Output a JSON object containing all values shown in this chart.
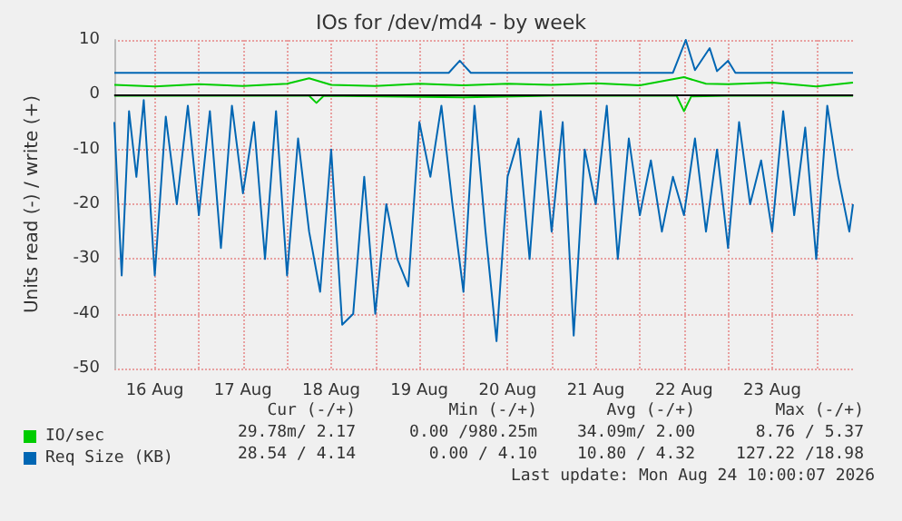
{
  "chart_data": {
    "type": "line",
    "title": "IOs for /dev/md4 - by week",
    "ylabel": "Units read (-) / write (+)",
    "xlim": [
      "2026-08-16T01:00",
      "2026-08-24T10:00"
    ],
    "xticks": [
      {
        "value": "2026-08-16T12:00",
        "label": "16 Aug"
      },
      {
        "value": "2026-08-17T00:00",
        "label": null
      },
      {
        "value": "2026-08-17T12:00",
        "label": "17 Aug"
      },
      {
        "value": "2026-08-18T00:00",
        "label": null
      },
      {
        "value": "2026-08-18T12:00",
        "label": "18 Aug"
      },
      {
        "value": "2026-08-19T00:00",
        "label": null
      },
      {
        "value": "2026-08-19T12:00",
        "label": "19 Aug"
      },
      {
        "value": "2026-08-20T00:00",
        "label": null
      },
      {
        "value": "2026-08-20T12:00",
        "label": "20 Aug"
      },
      {
        "value": "2026-08-21T00:00",
        "label": null
      },
      {
        "value": "2026-08-21T12:00",
        "label": "21 Aug"
      },
      {
        "value": "2026-08-22T00:00",
        "label": null
      },
      {
        "value": "2026-08-22T12:00",
        "label": "22 Aug"
      },
      {
        "value": "2026-08-23T00:00",
        "label": null
      },
      {
        "value": "2026-08-23T12:00",
        "label": "23 Aug"
      },
      {
        "value": "2026-08-24T00:00",
        "label": null
      }
    ],
    "ylim": [
      -50,
      10
    ],
    "yticks": [
      -50,
      -40,
      -30,
      -20,
      -10,
      0,
      10
    ],
    "grid": true,
    "legend": "bottom left",
    "marker": "none",
    "line_style": "solid",
    "ref_lines": [
      {
        "axis": "y",
        "value": 0,
        "color": "#000000"
      }
    ],
    "series": [
      {
        "name": "IO/sec",
        "color": "#00cc00",
        "x": [
          "2026-08-16T01:00",
          "2026-08-17T00:00",
          "2026-08-18T06:00",
          "2026-08-18T08:00",
          "2026-08-18T10:00",
          "2026-08-20T00:00",
          "2026-08-21T00:00",
          "2026-08-22T10:00",
          "2026-08-22T12:00",
          "2026-08-22T14:00",
          "2026-08-23T00:00",
          "2026-08-24T10:00"
        ],
        "values": [
          -0.2,
          -0.2,
          -0.2,
          -1.5,
          -0.2,
          -0.5,
          -0.2,
          -0.2,
          -3,
          -0.3,
          -0.2,
          -0.2
        ]
      },
      {
        "color": "#00cc00",
        "x": [
          "2026-08-16T01:00",
          "2026-08-16T12:00",
          "2026-08-17T00:00",
          "2026-08-17T12:00",
          "2026-08-18T00:00",
          "2026-08-18T06:00",
          "2026-08-18T12:00",
          "2026-08-19T00:00",
          "2026-08-19T12:00",
          "2026-08-20T00:00",
          "2026-08-20T12:00",
          "2026-08-21T00:00",
          "2026-08-21T12:00",
          "2026-08-22T00:00",
          "2026-08-22T12:00",
          "2026-08-22T18:00",
          "2026-08-23T00:00",
          "2026-08-23T12:00",
          "2026-08-24T00:00",
          "2026-08-24T10:00"
        ],
        "values": [
          1.8,
          1.5,
          1.9,
          1.6,
          2.0,
          3.0,
          1.8,
          1.6,
          2.0,
          1.7,
          2.0,
          1.8,
          2.1,
          1.7,
          3.2,
          2.0,
          1.9,
          2.2,
          1.5,
          2.2
        ]
      },
      {
        "name": "Req Size (KB)",
        "color": "#0066b3",
        "x": [
          "2026-08-16T01:00",
          "2026-08-16T03:00",
          "2026-08-16T05:00",
          "2026-08-16T07:00",
          "2026-08-16T09:00",
          "2026-08-16T12:00",
          "2026-08-16T15:00",
          "2026-08-16T18:00",
          "2026-08-16T21:00",
          "2026-08-17T00:00",
          "2026-08-17T03:00",
          "2026-08-17T06:00",
          "2026-08-17T09:00",
          "2026-08-17T12:00",
          "2026-08-17T15:00",
          "2026-08-17T18:00",
          "2026-08-17T21:00",
          "2026-08-18T00:00",
          "2026-08-18T03:00",
          "2026-08-18T06:00",
          "2026-08-18T09:00",
          "2026-08-18T12:00",
          "2026-08-18T15:00",
          "2026-08-18T18:00",
          "2026-08-18T21:00",
          "2026-08-19T00:00",
          "2026-08-19T03:00",
          "2026-08-19T06:00",
          "2026-08-19T09:00",
          "2026-08-19T12:00",
          "2026-08-19T15:00",
          "2026-08-19T18:00",
          "2026-08-19T21:00",
          "2026-08-20T00:00",
          "2026-08-20T03:00",
          "2026-08-20T06:00",
          "2026-08-20T09:00",
          "2026-08-20T12:00",
          "2026-08-20T15:00",
          "2026-08-20T18:00",
          "2026-08-20T21:00",
          "2026-08-21T00:00",
          "2026-08-21T03:00",
          "2026-08-21T06:00",
          "2026-08-21T09:00",
          "2026-08-21T12:00",
          "2026-08-21T15:00",
          "2026-08-21T18:00",
          "2026-08-21T21:00",
          "2026-08-22T00:00",
          "2026-08-22T03:00",
          "2026-08-22T06:00",
          "2026-08-22T09:00",
          "2026-08-22T12:00",
          "2026-08-22T15:00",
          "2026-08-22T18:00",
          "2026-08-22T21:00",
          "2026-08-23T00:00",
          "2026-08-23T03:00",
          "2026-08-23T06:00",
          "2026-08-23T09:00",
          "2026-08-23T12:00",
          "2026-08-23T15:00",
          "2026-08-23T18:00",
          "2026-08-23T21:00",
          "2026-08-24T00:00",
          "2026-08-24T03:00",
          "2026-08-24T06:00",
          "2026-08-24T09:00",
          "2026-08-24T10:00"
        ],
        "values": [
          -5,
          -33,
          -3,
          -15,
          -1,
          -33,
          -4,
          -20,
          -2,
          -22,
          -3,
          -28,
          -2,
          -18,
          -5,
          -30,
          -3,
          -33,
          -8,
          -25,
          -36,
          -10,
          -42,
          -40,
          -15,
          -40,
          -20,
          -30,
          -35,
          -5,
          -15,
          -2,
          -20,
          -36,
          -2,
          -25,
          -45,
          -15,
          -8,
          -30,
          -3,
          -25,
          -5,
          -44,
          -10,
          -20,
          -2,
          -30,
          -8,
          -22,
          -12,
          -25,
          -15,
          -22,
          -8,
          -25,
          -10,
          -28,
          -5,
          -20,
          -12,
          -25,
          -3,
          -22,
          -6,
          -30,
          -2,
          -15,
          -25,
          -20
        ]
      },
      {
        "color": "#0066b3",
        "x": [
          "2026-08-16T01:00",
          "2026-08-17T12:00",
          "2026-08-19T20:00",
          "2026-08-19T23:00",
          "2026-08-20T02:00",
          "2026-08-22T09:00",
          "2026-08-22T12:30",
          "2026-08-22T15:00",
          "2026-08-22T19:00",
          "2026-08-22T21:00",
          "2026-08-23T00:00",
          "2026-08-23T02:00",
          "2026-08-24T10:00"
        ],
        "values": [
          4,
          4,
          4,
          6.2,
          4,
          4,
          10,
          4.5,
          8.5,
          4.3,
          6.2,
          4,
          4
        ]
      }
    ],
    "annotations": [
      "Cur (-/+)",
      "Min (-/+)",
      "Avg (-/+)",
      "Max (-/+)",
      "29.78m/ 2.17",
      "0.00 /980.25m",
      "34.09m/ 2.00",
      "8.76 / 5.37",
      "28.54 / 4.14",
      "0.00 / 4.10",
      "10.80 / 4.32",
      "127.22 /18.98",
      "Last update: Mon Aug 24 10:00:07 2026"
    ]
  }
}
